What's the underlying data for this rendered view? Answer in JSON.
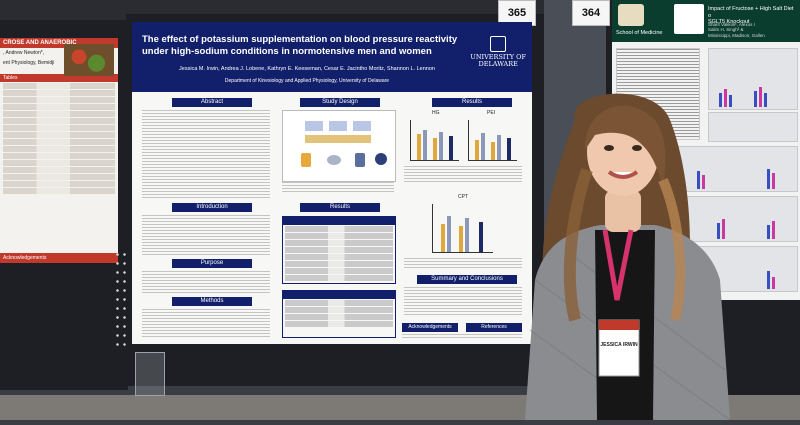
{
  "scene": {
    "description_tags": [
      "poster-session",
      "presenter",
      "research-poster"
    ],
    "colors": {
      "poster_header": "#12206b",
      "left_poster_accent": "#c0392b",
      "right_poster_header": "#0b3d2e",
      "lanyard": "#d6336c",
      "blazer": "#8a8c90"
    }
  },
  "left_poster": {
    "header": "CROSE AND ANAEROBIC",
    "authors": ", Andrew Newton*,",
    "dept": "ent Physiology, Bemidji",
    "table_label": "Tables",
    "ack_label": "Acknowledgements"
  },
  "main_poster": {
    "title": "The effect of potassium supplementation on blood pressure reactivity under high-sodium conditions in normotensive men and women",
    "authors": "Jessica M. Irwin, Andrea J. Lobene, Kathryn E. Keeseman, Cesar E. Jacintho Moritz, Shannon L. Lennon",
    "department": "Department of Kinesiology and Applied Physiology, University of Delaware",
    "logo_line1": "UNIVERSITY OF",
    "logo_line2": "DELAWARE",
    "sections": {
      "abstract": "Abstract",
      "study_design": "Study Design",
      "results_top": "Results",
      "introduction": "Introduction",
      "results_mid": "Results",
      "purpose": "Purpose",
      "methods": "Methods",
      "summary": "Summary and Conclusions",
      "acknowledgements": "Acknowledgements",
      "references": "References"
    },
    "chart_labels": {
      "left": "HG",
      "right": "PEI",
      "bottom": "CPT"
    }
  },
  "booth_numbers": {
    "left": "365",
    "right": "364"
  },
  "right_poster": {
    "school": "School of Medicine",
    "title": "Impact of Fructose + High Salt Diet o",
    "subtitle": "SGLT5 Knockout",
    "authors": "Sharif Vakkoli¹, Alexus I",
    "authors2": "Salim H. Singh³ &",
    "authors3": "Mississippi, Madison, Gallen"
  },
  "badge": {
    "name": "JESSICA IRWIN"
  }
}
